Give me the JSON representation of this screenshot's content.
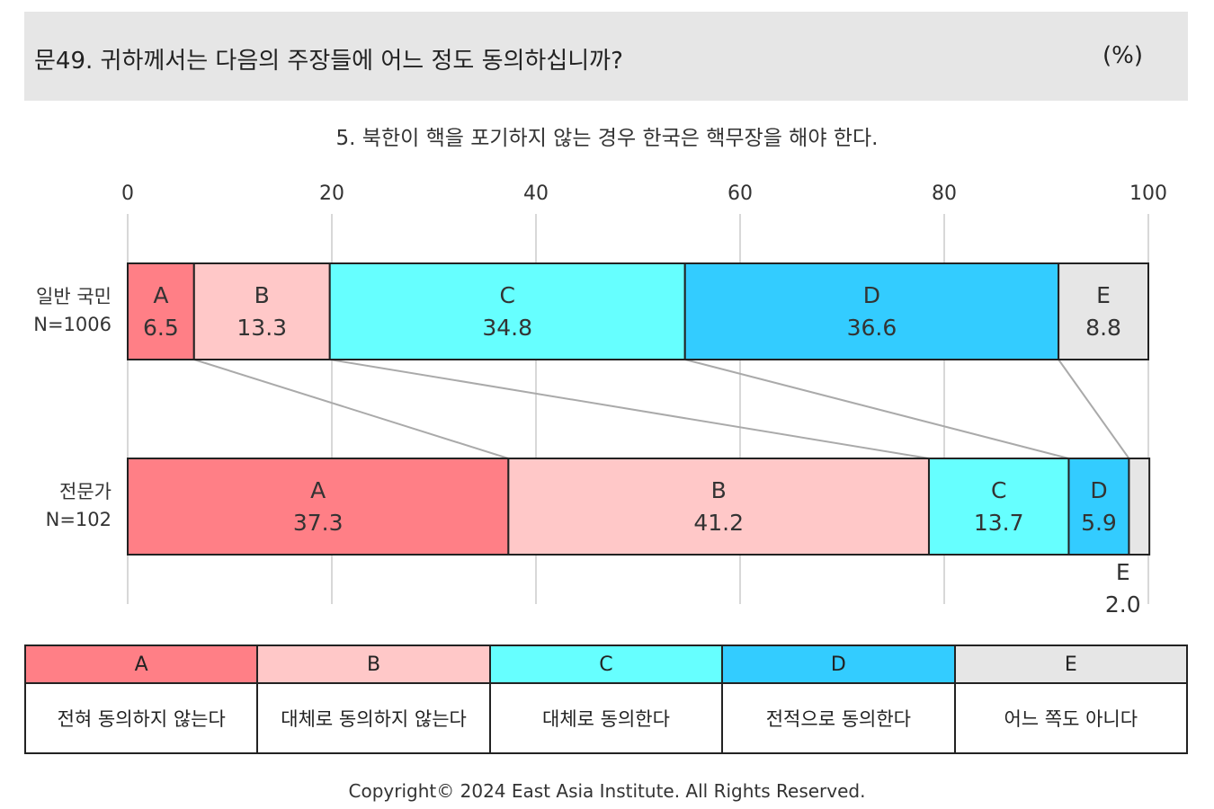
{
  "header": {
    "question": "문49. 귀하께서는 다음의 주장들에 어느 정도 동의하십니까?",
    "unit": "(%)"
  },
  "chart_data": {
    "type": "bar",
    "orientation": "horizontal",
    "stacked": true,
    "title": "5. 북한이 핵을 포기하지 않는 경우 한국은 핵무장을 해야 한다.",
    "xlim": [
      0,
      100
    ],
    "xticks": [
      "0",
      "20",
      "40",
      "60",
      "80",
      "100"
    ],
    "grid": true,
    "categories": [
      {
        "label": "일반 국민",
        "n": "N=1006"
      },
      {
        "label": "전문가",
        "n": "N=102"
      }
    ],
    "series": [
      {
        "name": "A",
        "values": [
          6.5,
          37.3
        ],
        "color": "#ff7f86"
      },
      {
        "name": "B",
        "values": [
          13.3,
          41.2
        ],
        "color": "#ffc8c8"
      },
      {
        "name": "C",
        "values": [
          34.8,
          13.7
        ],
        "color": "#66ffff"
      },
      {
        "name": "D",
        "values": [
          36.6,
          5.9
        ],
        "color": "#33ccff"
      },
      {
        "name": "E",
        "values": [
          8.8,
          2.0
        ],
        "color": "#e6e6e6"
      }
    ],
    "value_labels": [
      [
        "6.5",
        "13.3",
        "34.8",
        "36.6",
        "8.8"
      ],
      [
        "37.3",
        "41.2",
        "13.7",
        "5.9",
        "2.0"
      ]
    ]
  },
  "legend": {
    "items": [
      {
        "code": "A",
        "label": "전혀 동의하지 않는다",
        "color": "#ff7f86"
      },
      {
        "code": "B",
        "label": "대체로 동의하지 않는다",
        "color": "#ffc8c8"
      },
      {
        "code": "C",
        "label": "대체로 동의한다",
        "color": "#66ffff"
      },
      {
        "code": "D",
        "label": "전적으로 동의한다",
        "color": "#33ccff"
      },
      {
        "code": "E",
        "label": "어느 쪽도 아니다",
        "color": "#e6e6e6"
      }
    ]
  },
  "footer": {
    "copyright": "Copyright© 2024 East Asia Institute. All Rights Reserved."
  }
}
